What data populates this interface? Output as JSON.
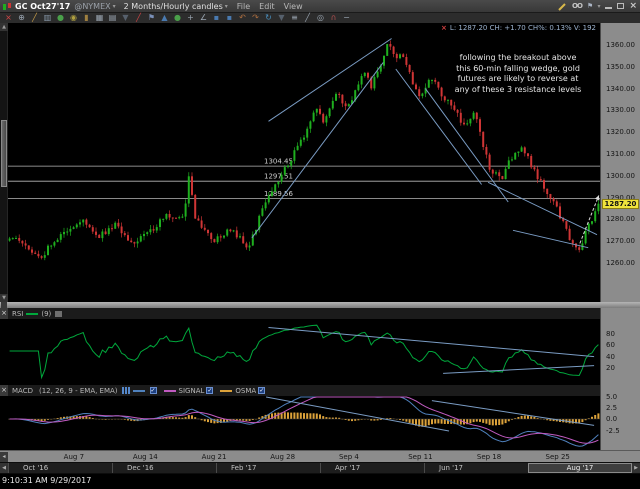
{
  "window": {
    "symbol": "GC Oct27'17",
    "exchange": "@NYMEX",
    "dropdown_caret": "▾",
    "timeframe": "2 Months/Hourly candles",
    "menus": [
      "File",
      "Edit",
      "View"
    ],
    "right_icons": {
      "pencil": "pencil-icon",
      "binoculars": "OO",
      "flag": "⚑"
    }
  },
  "toolbar": {
    "icons": [
      {
        "name": "close-chart-icon",
        "glyph": "×",
        "color": "#d04545"
      },
      {
        "name": "crosshair-icon",
        "glyph": "⊕",
        "color": "#9aa5b1"
      },
      {
        "name": "pen-icon",
        "glyph": "╱",
        "color": "#caa04a"
      },
      {
        "name": "columns-icon",
        "glyph": "▥",
        "color": "#8899aa"
      },
      {
        "name": "palette-icon",
        "glyph": "●",
        "color": "#4aa04a"
      },
      {
        "name": "eye-icon",
        "glyph": "◉",
        "color": "#b0a040"
      },
      {
        "name": "folder-icon",
        "glyph": "▮",
        "color": "#a08040"
      },
      {
        "name": "layout-grid-icon",
        "glyph": "▦",
        "color": "#9aa5b1"
      },
      {
        "name": "grid-icon",
        "glyph": "▤",
        "color": "#9aa5b1"
      },
      {
        "name": "filter-icon",
        "glyph": "▼",
        "color": "#56606c"
      },
      {
        "name": "trendline-icon",
        "glyph": "╱",
        "color": "#d04545"
      },
      {
        "name": "flag-icon",
        "glyph": "⚑",
        "color": "#7a90b8"
      },
      {
        "name": "triangle-up-icon",
        "glyph": "▲",
        "color": "#4a7ab0"
      },
      {
        "name": "dot-icon",
        "glyph": "●",
        "color": "#4aa04a"
      },
      {
        "name": "plus-icon",
        "glyph": "+",
        "color": "#9aa5b1"
      },
      {
        "name": "angle-icon",
        "glyph": "∠",
        "color": "#9aa5b1"
      },
      {
        "name": "rect-blue-icon",
        "glyph": "▪",
        "color": "#4a7ab0"
      },
      {
        "name": "rect-blue2-icon",
        "glyph": "▪",
        "color": "#4a7ab0"
      },
      {
        "name": "undo-icon",
        "glyph": "↶",
        "color": "#b07040"
      },
      {
        "name": "redo-icon",
        "glyph": "↷",
        "color": "#b07040"
      },
      {
        "name": "refresh-icon",
        "glyph": "↻",
        "color": "#4a90c0"
      },
      {
        "name": "dropdown-icon",
        "glyph": "▼",
        "color": "#56606c"
      },
      {
        "name": "list-icon",
        "glyph": "≡",
        "color": "#9aa5b1"
      },
      {
        "name": "ruler-icon",
        "glyph": "╱",
        "color": "#9aa5b1"
      },
      {
        "name": "zoom-icon",
        "glyph": "◎",
        "color": "#9aa5b1"
      },
      {
        "name": "anchor-icon",
        "glyph": "∩",
        "color": "#b05050"
      },
      {
        "name": "wrench-icon",
        "glyph": "−",
        "color": "#9aa5b1"
      }
    ]
  },
  "quote": {
    "close_x": "×",
    "text": "L: 1287.20  CH: +1.70  CH%: 0.13%  V: 192",
    "last": "1287.20",
    "change": "+1.70",
    "change_pct": "0.13%",
    "volume": "192"
  },
  "chart_data": {
    "type": "candlestick",
    "symbol": "GC Oct27'17 @NYMEX",
    "timeframe": "2 Months / Hourly candles",
    "last_price": 1287.2,
    "last_price_label": "1287.20",
    "ylim": [
      1242,
      1370
    ],
    "price_ticks": [
      "1360.00",
      "1350.00",
      "1340.00",
      "1330.00",
      "1320.00",
      "1310.00",
      "1300.00",
      "1290.00",
      "1280.00",
      "1270.00",
      "1260.00"
    ],
    "x_labels": [
      {
        "label": "Aug 7",
        "f": 0.116
      },
      {
        "label": "Aug 14",
        "f": 0.233
      },
      {
        "label": "Aug 21",
        "f": 0.349
      },
      {
        "label": "Aug 28",
        "f": 0.465
      },
      {
        "label": "Sep 4",
        "f": 0.581
      },
      {
        "label": "Sep 11",
        "f": 0.698
      },
      {
        "label": "Sep 18",
        "f": 0.814
      },
      {
        "label": "Sep 25",
        "f": 0.93
      }
    ],
    "colors": {
      "up": "#1faf1f",
      "down": "#cf3535",
      "trendline": "#7a9cc4",
      "resistance": "#b8b8b8",
      "rsi": "#00a83c",
      "macd": "#4f81bd",
      "signal": "#c05ac0",
      "osma": "#dca23a",
      "badge": "#f0e33c",
      "arrow": "#dddddd"
    },
    "resistance_levels": [
      {
        "label": "1304.45",
        "price": 1304.45
      },
      {
        "label": "1297.51",
        "price": 1297.51
      },
      {
        "label": "1289.56",
        "price": 1289.56
      }
    ],
    "price_path_keypoints": [
      [
        0.0,
        1272
      ],
      [
        0.025,
        1268
      ],
      [
        0.05,
        1262
      ],
      [
        0.09,
        1274
      ],
      [
        0.12,
        1280
      ],
      [
        0.15,
        1272
      ],
      [
        0.18,
        1278
      ],
      [
        0.21,
        1268
      ],
      [
        0.24,
        1275
      ],
      [
        0.27,
        1282
      ],
      [
        0.295,
        1280
      ],
      [
        0.305,
        1301
      ],
      [
        0.315,
        1280
      ],
      [
        0.345,
        1270
      ],
      [
        0.375,
        1276
      ],
      [
        0.405,
        1267
      ],
      [
        0.435,
        1288
      ],
      [
        0.465,
        1302
      ],
      [
        0.5,
        1318
      ],
      [
        0.52,
        1331
      ],
      [
        0.535,
        1324
      ],
      [
        0.555,
        1337
      ],
      [
        0.575,
        1332
      ],
      [
        0.6,
        1347
      ],
      [
        0.615,
        1341
      ],
      [
        0.645,
        1362
      ],
      [
        0.655,
        1352
      ],
      [
        0.665,
        1358
      ],
      [
        0.685,
        1342
      ],
      [
        0.7,
        1336
      ],
      [
        0.715,
        1346
      ],
      [
        0.735,
        1337
      ],
      [
        0.755,
        1330
      ],
      [
        0.775,
        1322
      ],
      [
        0.79,
        1329
      ],
      [
        0.815,
        1303
      ],
      [
        0.835,
        1298
      ],
      [
        0.855,
        1310
      ],
      [
        0.87,
        1314
      ],
      [
        0.89,
        1303
      ],
      [
        0.91,
        1294
      ],
      [
        0.93,
        1285
      ],
      [
        0.95,
        1272
      ],
      [
        0.968,
        1266
      ],
      [
        0.985,
        1278
      ],
      [
        1.0,
        1287.2
      ]
    ],
    "trendlines": [
      {
        "x1": 0.412,
        "p1": 1271.5,
        "x2": 0.634,
        "p2": 1352
      },
      {
        "x1": 0.44,
        "p1": 1325,
        "x2": 0.648,
        "p2": 1363
      },
      {
        "x1": 0.655,
        "p1": 1349,
        "x2": 0.8,
        "p2": 1296
      },
      {
        "x1": 0.705,
        "p1": 1340,
        "x2": 0.845,
        "p2": 1288
      },
      {
        "x1": 0.811,
        "p1": 1297,
        "x2": 0.995,
        "p2": 1273
      },
      {
        "x1": 0.853,
        "p1": 1275,
        "x2": 0.98,
        "p2": 1267
      }
    ],
    "breakout_arrow": {
      "x1": 0.966,
      "p1": 1269,
      "x2": 0.998,
      "p2": 1291
    },
    "annotation": "following the breakout above\nthis 60-min falling wedge, gold\nfutures are likely to reverse at\nany of these 3 resistance levels",
    "indicators": {
      "rsi": {
        "label": "RSI",
        "period": "(9)",
        "ticks": [
          80,
          60,
          40,
          20
        ],
        "trendlines": [
          {
            "x1": 0.44,
            "v1": 92,
            "x2": 0.99,
            "v2": 40
          },
          {
            "x1": 0.735,
            "v1": 10,
            "x2": 0.99,
            "v2": 24
          }
        ]
      },
      "macd": {
        "label": "MACD",
        "params": "(12, 26, 9 - EMA, EMA)",
        "ticks": [
          5.0,
          2.5,
          0.0,
          -2.5
        ],
        "tick_labels": [
          "5.0",
          "2.5",
          "0.0",
          "-2.5"
        ],
        "signal_label": "SIGNAL",
        "osma_label": "OSMA",
        "trendlines": [
          {
            "x1": 0.436,
            "v1": 5.4,
            "x2": 0.745,
            "v2": -2.6
          },
          {
            "x1": 0.716,
            "v1": 4.0,
            "x2": 0.99,
            "v2": -1.4
          }
        ]
      }
    }
  },
  "date_axis_icon": "◂",
  "navigator": {
    "labels": [
      "Oct '16",
      "Dec '16",
      "Feb '17",
      "Apr '17",
      "Jun '17"
    ],
    "selected_label": "Aug '17"
  },
  "statusbar": {
    "text": "9:10:31 AM 9/29/2017"
  }
}
